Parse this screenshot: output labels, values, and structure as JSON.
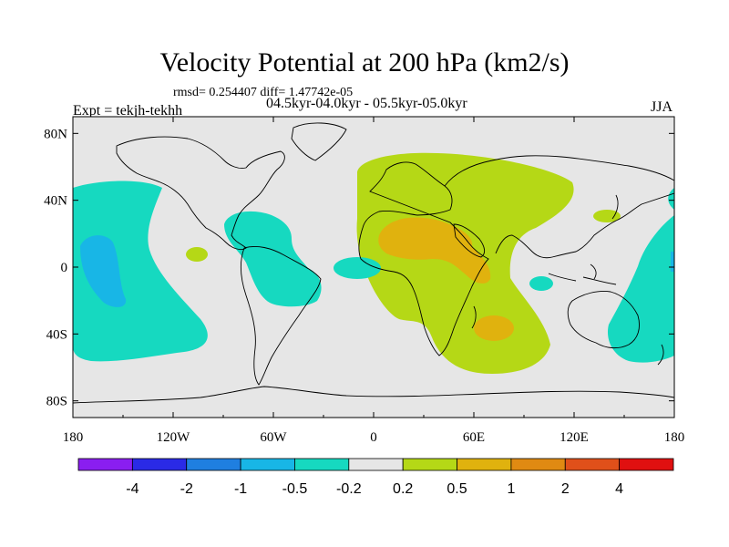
{
  "header": {
    "title": "Velocity Potential at 200 hPa (km2/s)",
    "stats": "rmsd= 0.254407 diff= 1.47742e-05",
    "experiment": "Expt = tekjh-tekhh",
    "period": "04.5kyr-04.0kyr - 05.5kyr-05.0kyr",
    "season": "JJA"
  },
  "chart_data": {
    "type": "contour-map",
    "title": "Velocity Potential at 200 hPa (km2/s)",
    "projection": "cylindrical equidistant",
    "x_ticks": [
      "180",
      "120W",
      "60W",
      "0",
      "60E",
      "120E",
      "180"
    ],
    "y_ticks": [
      "80N",
      "40N",
      "0",
      "40S",
      "80S"
    ],
    "lon_range": [
      -180,
      180
    ],
    "lat_range": [
      -90,
      90
    ],
    "colorbar": {
      "levels": [
        -4,
        -2,
        -1,
        -0.5,
        -0.2,
        0.2,
        0.5,
        1,
        2,
        4
      ],
      "labels": [
        "-4",
        "-2",
        "-1",
        "-0.5",
        "-0.2",
        "0.2",
        "0.5",
        "1",
        "2",
        "4"
      ],
      "colors": [
        "#8a1ef0",
        "#2a2ae6",
        "#1f7fe0",
        "#18b6e6",
        "#16d9c0",
        "#e6e6e6",
        "#b5d816",
        "#e0b20e",
        "#e08a12",
        "#e0501a",
        "#e01010"
      ]
    },
    "regions": [
      {
        "category": "-0.5 to -0.2",
        "location": "central/eastern Pacific"
      },
      {
        "category": "-1 to -0.5",
        "location": "central Pacific core"
      },
      {
        "category": "-0.5 to -0.2",
        "location": "Caribbean and tropical Atlantic"
      },
      {
        "category": "-0.5 to -0.2",
        "location": "western Pacific / Maritime Continent"
      },
      {
        "category": "0.2 to 0.5",
        "location": "Europe, Africa, Middle East and Indian Ocean"
      },
      {
        "category": "0.5 to 1",
        "location": "North Africa and Arabia"
      },
      {
        "category": "0.5 to 1",
        "location": "southern Indian Ocean"
      },
      {
        "category": "0.2 to 0.5",
        "location": "eastern Pacific near 10N"
      },
      {
        "category": "0.2 to 0.5",
        "location": "off Japan"
      }
    ]
  }
}
